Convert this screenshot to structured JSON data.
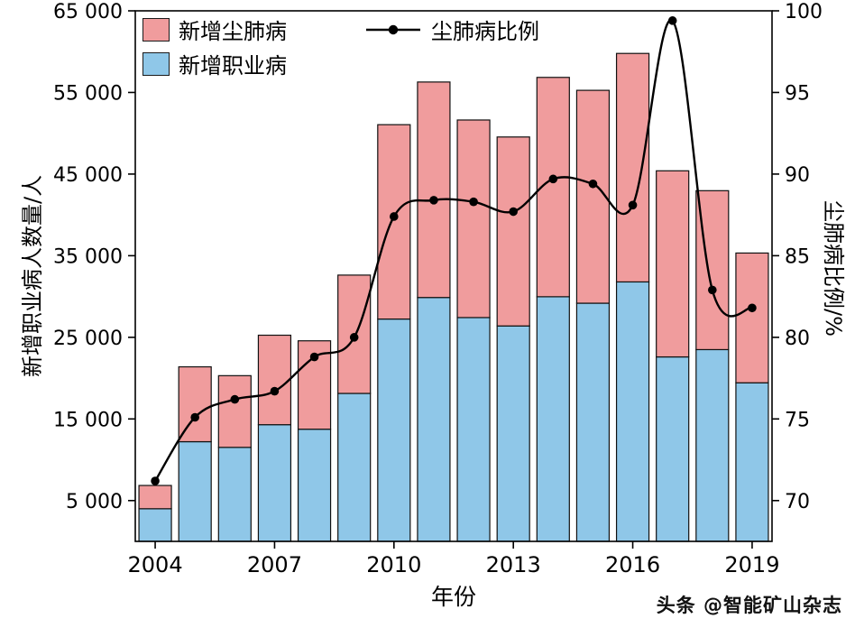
{
  "watermark": "头条 @智能矿山杂志",
  "chart_data": {
    "type": "bar",
    "subtype": "stacked-bar-with-line",
    "categories": [
      "2004",
      "2005",
      "2006",
      "2007",
      "2008",
      "2009",
      "2010",
      "2011",
      "2012",
      "2013",
      "2014",
      "2015",
      "2016",
      "2017",
      "2018",
      "2019"
    ],
    "series": [
      {
        "name": "新增尘肺病",
        "type": "bar",
        "stack": "total",
        "position": "top",
        "color": "#F09C9D",
        "values": [
          2850,
          9173,
          8783,
          10963,
          10829,
          14495,
          23812,
          26401,
          24206,
          23152,
          26873,
          26081,
          27992,
          22800,
          19468,
          15898
        ]
      },
      {
        "name": "新增职业病",
        "type": "bar",
        "stack": "total",
        "position": "bottom",
        "color": "#8FC7E8",
        "values": [
          4000,
          12212,
          11519,
          14296,
          13744,
          18128,
          27240,
          29879,
          27420,
          26393,
          29972,
          29180,
          31789,
          22600,
          23497,
          19428
        ]
      },
      {
        "name": "尘肺病比例",
        "type": "line",
        "axis": "right",
        "color": "#000000",
        "marker": "dot",
        "values": [
          71.2,
          75.1,
          76.2,
          76.7,
          78.8,
          80.0,
          87.4,
          88.4,
          88.3,
          87.7,
          89.7,
          89.4,
          88.1,
          99.4,
          82.9,
          81.8
        ]
      }
    ],
    "x_axis": {
      "label": "年份",
      "ticks": [
        "2004",
        "2007",
        "2010",
        "2013",
        "2016",
        "2019"
      ]
    },
    "left_axis": {
      "label": "新增职业病人数量/人",
      "range": [
        0,
        65000
      ],
      "ticks": [
        {
          "v": 65000,
          "label": "65 000"
        },
        {
          "v": 55000,
          "label": "55 000"
        },
        {
          "v": 45000,
          "label": "45 000"
        },
        {
          "v": 35000,
          "label": "35 000"
        },
        {
          "v": 25000,
          "label": "25 000"
        },
        {
          "v": 15000,
          "label": "15 000"
        },
        {
          "v": 5000,
          "label": "5 000"
        }
      ]
    },
    "right_axis": {
      "label": "尘肺病比例/%",
      "range": [
        70,
        100
      ],
      "ticks": [
        {
          "v": 100,
          "label": "100"
        },
        {
          "v": 95,
          "label": "95"
        },
        {
          "v": 90,
          "label": "90"
        },
        {
          "v": 85,
          "label": "85"
        },
        {
          "v": 80,
          "label": "80"
        },
        {
          "v": 75,
          "label": "75"
        },
        {
          "v": 70,
          "label": "70"
        }
      ]
    },
    "legend": {
      "items": [
        "新增尘肺病",
        "新增职业病",
        "尘肺病比例"
      ]
    },
    "grid": false,
    "legend_position": "top-left-inside"
  }
}
